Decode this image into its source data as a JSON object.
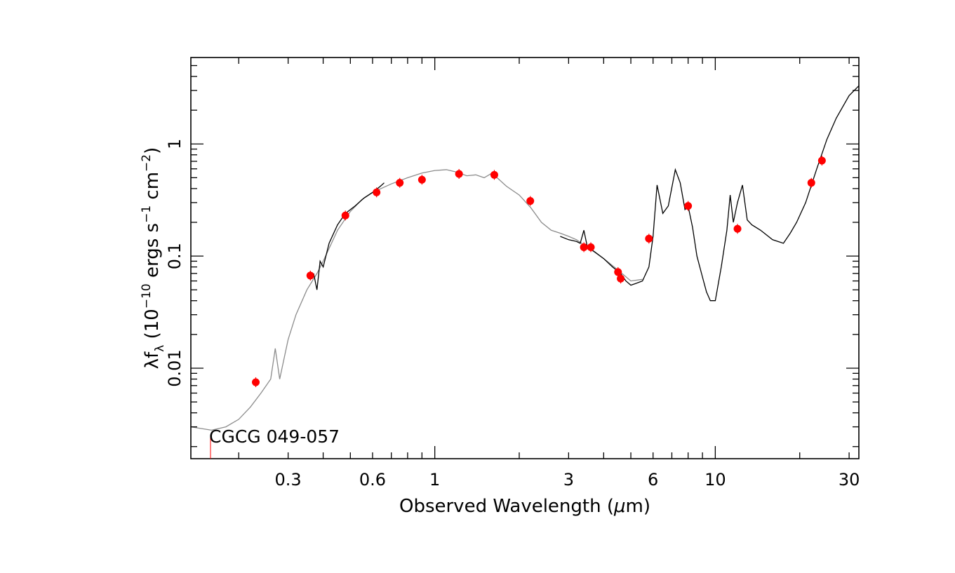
{
  "chart_data": {
    "type": "scatter",
    "xlabel_prefix": "Observed Wavelength (",
    "xlabel_mu": "μ",
    "xlabel_suffix": "m)",
    "ylabel_text": "λf",
    "ylabel_sub": "λ",
    "ylabel_units_a": " (10",
    "ylabel_exp1": "−10",
    "ylabel_units_b": " ergs s",
    "ylabel_exp2": "−1",
    "ylabel_units_c": " cm",
    "ylabel_exp3": "−2",
    "ylabel_units_d": ")",
    "object_label": "CGCG 049-057",
    "x_scale": "log",
    "y_scale": "log",
    "xlim": [
      0.135,
      32.5
    ],
    "ylim": [
      0.00156,
      5.9
    ],
    "x_tick_labels": [
      "0.3",
      "0.6",
      "1",
      "3",
      "6",
      "10",
      "30"
    ],
    "x_tick_values": [
      0.3,
      0.6,
      1,
      3,
      6,
      10,
      30
    ],
    "y_tick_labels": [
      "0.01",
      "0.1",
      "1"
    ],
    "y_tick_values": [
      0.01,
      0.1,
      1
    ],
    "colors": {
      "photometry": "#ff0000",
      "model": "#8c8c8c",
      "spectrum": "#000000"
    },
    "photometry": {
      "x": [
        0.23,
        0.36,
        0.48,
        0.62,
        0.75,
        0.9,
        1.22,
        1.63,
        2.19,
        3.4,
        3.6,
        4.5,
        4.6,
        5.8,
        8.0,
        12.0,
        22.0,
        24.0
      ],
      "y": [
        0.0075,
        0.067,
        0.23,
        0.37,
        0.45,
        0.48,
        0.54,
        0.53,
        0.31,
        0.12,
        0.12,
        0.072,
        0.063,
        0.143,
        0.28,
        0.175,
        0.45,
        0.71
      ]
    },
    "model_curve": {
      "x": [
        0.135,
        0.16,
        0.18,
        0.2,
        0.22,
        0.24,
        0.26,
        0.27,
        0.28,
        0.3,
        0.32,
        0.35,
        0.38,
        0.4,
        0.45,
        0.5,
        0.55,
        0.6,
        0.7,
        0.8,
        0.9,
        1.0,
        1.1,
        1.2,
        1.3,
        1.4,
        1.5,
        1.6,
        1.8,
        2.0,
        2.2,
        2.4,
        2.6,
        2.8,
        3.0,
        3.2,
        3.5,
        4.0,
        4.5,
        5.0,
        5.5
      ],
      "y": [
        0.003,
        0.0028,
        0.003,
        0.0035,
        0.0045,
        0.006,
        0.008,
        0.015,
        0.008,
        0.018,
        0.03,
        0.05,
        0.07,
        0.09,
        0.17,
        0.25,
        0.32,
        0.37,
        0.44,
        0.5,
        0.55,
        0.58,
        0.59,
        0.56,
        0.52,
        0.53,
        0.5,
        0.55,
        0.42,
        0.35,
        0.27,
        0.2,
        0.17,
        0.16,
        0.15,
        0.14,
        0.12,
        0.095,
        0.075,
        0.06,
        0.062
      ]
    },
    "spectrum_segments": [
      {
        "x": [
          0.37,
          0.38,
          0.39,
          0.4,
          0.42,
          0.45,
          0.48,
          0.52,
          0.56,
          0.6,
          0.64,
          0.66
        ],
        "y": [
          0.07,
          0.05,
          0.09,
          0.08,
          0.13,
          0.19,
          0.24,
          0.28,
          0.33,
          0.37,
          0.42,
          0.45
        ]
      },
      {
        "x": [
          2.8,
          3.0,
          3.2,
          3.3,
          3.4,
          3.5,
          3.7,
          4.0,
          4.3,
          4.6,
          4.8,
          5.0,
          5.2,
          5.5,
          5.8,
          6.0,
          6.2,
          6.5,
          6.8,
          7.2,
          7.5,
          7.8,
          8.0,
          8.3,
          8.6,
          9.0,
          9.3,
          9.6,
          10.0,
          10.5,
          11.0,
          11.3,
          11.6,
          12.0,
          12.5,
          13.0,
          13.5,
          14.5,
          16.0,
          17.5,
          18.5,
          19.5,
          21.0,
          23.0,
          25.0,
          27.0,
          30.0,
          32.5
        ],
        "y": [
          0.15,
          0.14,
          0.135,
          0.13,
          0.17,
          0.12,
          0.11,
          0.095,
          0.08,
          0.07,
          0.06,
          0.055,
          0.057,
          0.06,
          0.08,
          0.15,
          0.43,
          0.24,
          0.28,
          0.59,
          0.45,
          0.26,
          0.28,
          0.18,
          0.1,
          0.065,
          0.048,
          0.04,
          0.04,
          0.08,
          0.17,
          0.35,
          0.2,
          0.3,
          0.43,
          0.21,
          0.19,
          0.17,
          0.14,
          0.13,
          0.16,
          0.2,
          0.3,
          0.6,
          1.1,
          1.7,
          2.7,
          3.3
        ]
      }
    ]
  }
}
